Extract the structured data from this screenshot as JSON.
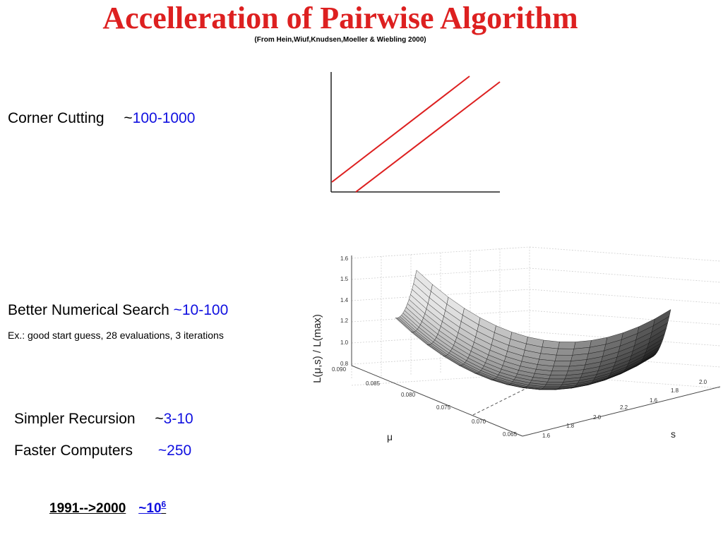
{
  "title": "Accelleration of Pairwise Algorithm",
  "subtitle": "(From Hein,Wiuf,Knudsen,Moeller & Wiebling 2000)",
  "colors": {
    "title": "#dd2020",
    "value": "#1010e0",
    "diagonal_lines": "#dd2020"
  },
  "items": [
    {
      "label": "Corner Cutting",
      "tilde": "~",
      "value": "100-1000"
    },
    {
      "label": "Better Numerical Search",
      "tilde": "~",
      "value": "10-100",
      "note": "Ex.: good start guess, 28 evaluations, 3 iterations"
    },
    {
      "label": "Simpler Recursion",
      "tilde": "~",
      "value": "3-10"
    },
    {
      "label": "Faster Computers",
      "tilde": "~",
      "value": "250"
    }
  ],
  "summary": {
    "period": "1991-->2000",
    "factor_prefix": "~10",
    "factor_exponent": "6"
  },
  "corner_diagram": {
    "description_lines": 2
  },
  "surface_plot": {
    "zlabel": "L(μ,s) / L(max)",
    "xlabel": "μ",
    "ylabel": "s",
    "z_ticks": [
      "1.6",
      "1.5",
      "1.4",
      "1.2",
      "1.2",
      "1.0",
      "0.8"
    ],
    "mu_ticks": [
      "0.090",
      "0.085",
      "0.080",
      "0.075",
      "0.070",
      "0.065"
    ],
    "s_ticks": [
      "1.6",
      "1.8",
      "2.0",
      "2.2",
      "1.6",
      "1.8",
      "2.0"
    ]
  }
}
